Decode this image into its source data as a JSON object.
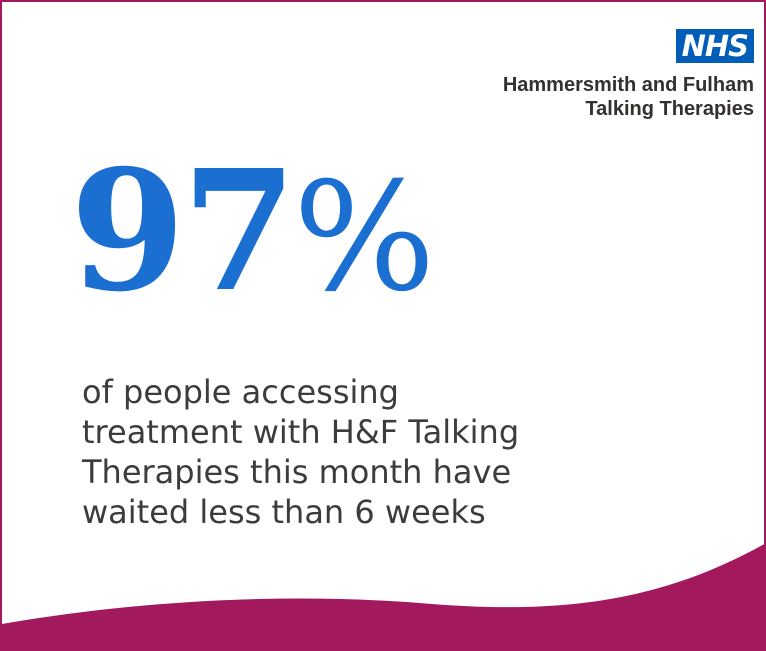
{
  "logo": {
    "badge": "NHS",
    "org_line_1": "Hammersmith and Fulham",
    "org_line_2": "Talking Therapies"
  },
  "stat": {
    "number": "97",
    "unit": "%"
  },
  "description": "of people accessing\ntreatment with H&F Talking\nTherapies this month have\nwaited less than 6 weeks",
  "colors": {
    "nhs_blue": "#005eb8",
    "stat_blue": "#1a6fd0",
    "magenta": "#a2195e",
    "text_dark": "#3c3c3c"
  }
}
